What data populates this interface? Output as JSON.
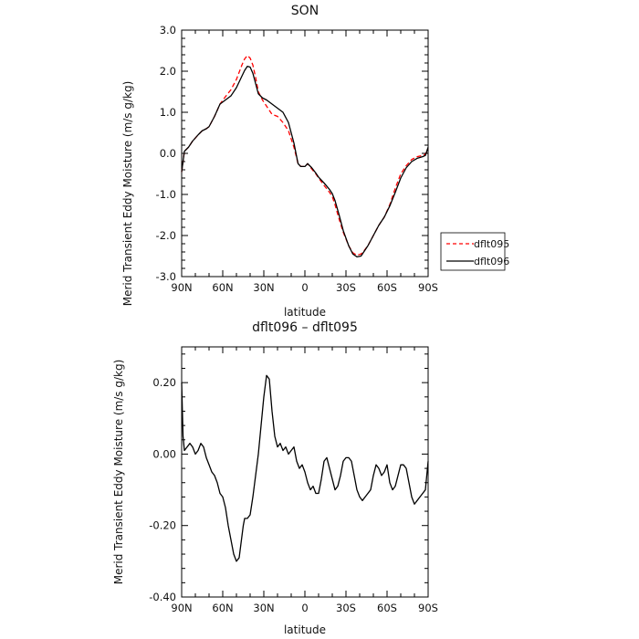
{
  "chart_data": [
    {
      "type": "line",
      "title": "SON",
      "xlabel": "latitude",
      "ylabel": "Merid Transient Eddy Moisture (m/s g/kg)",
      "xlim": [
        90,
        -90
      ],
      "ylim": [
        -3.0,
        3.0
      ],
      "x_ticks": [
        90,
        60,
        30,
        0,
        -30,
        -60,
        -90
      ],
      "x_tick_labels": [
        "90N",
        "60N",
        "30N",
        "0",
        "30S",
        "60S",
        "90S"
      ],
      "y_ticks": [
        3.0,
        2.0,
        1.0,
        0.0,
        -1.0,
        -2.0,
        -3.0
      ],
      "y_tick_labels": [
        "3.0",
        "2.0",
        "1.0",
        "0.0",
        "-1.0",
        "-2.0",
        "-3.0"
      ],
      "legend_position": "right",
      "colors": {
        "dflt095": "#ff0000",
        "dflt096": "#000000"
      },
      "series": [
        {
          "name": "dflt095",
          "style": "dashed",
          "x": [
            90,
            88,
            85,
            82,
            78,
            75,
            72,
            70,
            66,
            62,
            58,
            54,
            50,
            46,
            44,
            42,
            40,
            38,
            36,
            34,
            31,
            28,
            24,
            20,
            16,
            12,
            8,
            5,
            3,
            0,
            -2,
            -5,
            -8,
            -10,
            -14,
            -18,
            -20,
            -22,
            -25,
            -28,
            -32,
            -35,
            -38,
            -41,
            -43,
            -46,
            -50,
            -54,
            -58,
            -62,
            -66,
            -70,
            -74,
            -78,
            -82,
            -86,
            -88,
            -90
          ],
          "y": [
            -0.45,
            0.05,
            0.15,
            0.3,
            0.45,
            0.55,
            0.6,
            0.65,
            0.9,
            1.2,
            1.38,
            1.55,
            1.8,
            2.15,
            2.3,
            2.38,
            2.32,
            2.15,
            1.85,
            1.5,
            1.3,
            1.15,
            0.95,
            0.9,
            0.75,
            0.55,
            0.15,
            -0.25,
            -0.32,
            -0.32,
            -0.25,
            -0.38,
            -0.5,
            -0.6,
            -0.78,
            -0.95,
            -1.05,
            -1.25,
            -1.6,
            -1.92,
            -2.25,
            -2.42,
            -2.48,
            -2.45,
            -2.38,
            -2.25,
            -2.0,
            -1.75,
            -1.55,
            -1.25,
            -0.85,
            -0.5,
            -0.3,
            -0.15,
            -0.08,
            -0.05,
            -0.02,
            0.1
          ]
        },
        {
          "name": "dflt096",
          "style": "solid",
          "x": [
            90,
            88,
            85,
            82,
            78,
            75,
            72,
            70,
            66,
            62,
            58,
            54,
            50,
            46,
            44,
            42,
            40,
            38,
            36,
            34,
            31,
            28,
            24,
            20,
            16,
            12,
            8,
            5,
            3,
            0,
            -2,
            -5,
            -8,
            -10,
            -14,
            -18,
            -20,
            -22,
            -25,
            -28,
            -32,
            -35,
            -38,
            -41,
            -43,
            -46,
            -50,
            -54,
            -58,
            -62,
            -66,
            -70,
            -74,
            -78,
            -82,
            -86,
            -88,
            -90
          ],
          "y": [
            -0.45,
            0.05,
            0.15,
            0.3,
            0.45,
            0.55,
            0.6,
            0.65,
            0.9,
            1.2,
            1.3,
            1.4,
            1.6,
            1.88,
            2.02,
            2.12,
            2.1,
            1.95,
            1.7,
            1.45,
            1.35,
            1.3,
            1.2,
            1.1,
            1.0,
            0.75,
            0.25,
            -0.25,
            -0.32,
            -0.32,
            -0.25,
            -0.35,
            -0.48,
            -0.58,
            -0.72,
            -0.88,
            -0.98,
            -1.15,
            -1.5,
            -1.88,
            -2.25,
            -2.45,
            -2.52,
            -2.5,
            -2.4,
            -2.25,
            -2.0,
            -1.75,
            -1.55,
            -1.28,
            -0.95,
            -0.6,
            -0.35,
            -0.2,
            -0.12,
            -0.08,
            -0.05,
            0.15
          ]
        }
      ]
    },
    {
      "type": "line",
      "title": "dflt096 – dflt095",
      "xlabel": "latitude",
      "ylabel": "Merid Transient Eddy Moisture (m/s g/kg)",
      "xlim": [
        90,
        -90
      ],
      "ylim": [
        -0.4,
        0.3
      ],
      "x_ticks": [
        90,
        60,
        30,
        0,
        -30,
        -60,
        -90
      ],
      "x_tick_labels": [
        "90N",
        "60N",
        "30N",
        "0",
        "30S",
        "60S",
        "90S"
      ],
      "y_ticks": [
        0.2,
        0.0,
        -0.2,
        -0.4
      ],
      "y_tick_labels": [
        "0.20",
        "0.00",
        "-0.20",
        "-0.40"
      ],
      "colors": {
        "difference": "#000000"
      },
      "series": [
        {
          "style": "solid",
          "x": [
            90,
            89,
            88,
            86,
            84,
            82,
            80,
            78,
            76,
            74,
            72,
            70,
            68,
            66,
            64,
            62,
            60,
            58,
            56,
            54,
            52,
            50,
            48,
            46,
            45,
            44,
            42,
            40,
            38,
            36,
            34,
            32,
            30,
            28,
            26,
            24,
            22,
            20,
            18,
            16,
            14,
            12,
            10,
            8,
            6,
            4,
            2,
            0,
            -2,
            -4,
            -6,
            -8,
            -10,
            -12,
            -14,
            -16,
            -18,
            -20,
            -22,
            -24,
            -26,
            -28,
            -30,
            -32,
            -34,
            -36,
            -38,
            -40,
            -42,
            -44,
            -46,
            -48,
            -50,
            -52,
            -54,
            -56,
            -58,
            -60,
            -62,
            -64,
            -66,
            -68,
            -70,
            -72,
            -74,
            -76,
            -78,
            -80,
            -82,
            -84,
            -86,
            -88,
            -90
          ],
          "y": [
            0.2,
            0.05,
            0.01,
            0.02,
            0.03,
            0.02,
            0.0,
            0.01,
            0.03,
            0.02,
            -0.01,
            -0.03,
            -0.05,
            -0.06,
            -0.08,
            -0.11,
            -0.12,
            -0.15,
            -0.2,
            -0.24,
            -0.28,
            -0.3,
            -0.29,
            -0.23,
            -0.2,
            -0.18,
            -0.18,
            -0.17,
            -0.12,
            -0.06,
            0.0,
            0.08,
            0.16,
            0.22,
            0.21,
            0.12,
            0.05,
            0.02,
            0.03,
            0.01,
            0.02,
            0.0,
            0.01,
            0.02,
            -0.02,
            -0.04,
            -0.03,
            -0.05,
            -0.08,
            -0.1,
            -0.09,
            -0.11,
            -0.11,
            -0.07,
            -0.02,
            -0.01,
            -0.04,
            -0.07,
            -0.1,
            -0.09,
            -0.06,
            -0.02,
            -0.01,
            -0.01,
            -0.02,
            -0.06,
            -0.1,
            -0.12,
            -0.13,
            -0.12,
            -0.11,
            -0.1,
            -0.06,
            -0.03,
            -0.04,
            -0.06,
            -0.05,
            -0.03,
            -0.08,
            -0.1,
            -0.09,
            -0.06,
            -0.03,
            -0.03,
            -0.04,
            -0.08,
            -0.12,
            -0.14,
            -0.13,
            -0.12,
            -0.11,
            -0.1,
            -0.02
          ]
        }
      ]
    }
  ]
}
